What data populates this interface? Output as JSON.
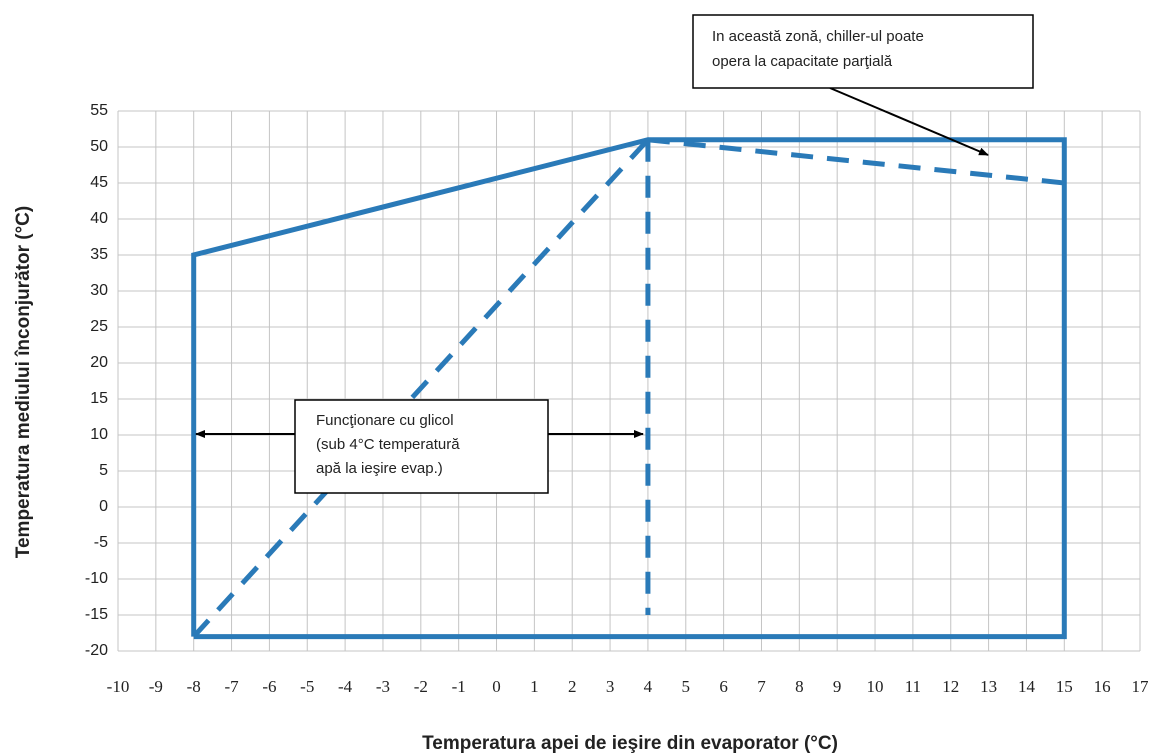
{
  "chart_data": {
    "type": "line",
    "xlabel": "Temperatura apei de ieşire din evaporator (°C)",
    "ylabel": "Temperatura mediului înconjurător (°C)",
    "xlim": [
      -10,
      17
    ],
    "ylim": [
      -20,
      55
    ],
    "xticks": [
      -10,
      -9,
      -8,
      -7,
      -6,
      -5,
      -4,
      -3,
      -2,
      -1,
      0,
      1,
      2,
      3,
      4,
      5,
      6,
      7,
      8,
      9,
      10,
      11,
      12,
      13,
      14,
      15,
      16,
      17
    ],
    "yticks": [
      -20,
      -15,
      -10,
      -5,
      0,
      5,
      10,
      15,
      20,
      25,
      30,
      35,
      40,
      45,
      50,
      55
    ],
    "grid": true,
    "series": [
      {
        "color": "#2a7ab8",
        "dashed": false,
        "x": [
          -8,
          -8,
          4,
          15,
          15,
          -8
        ],
        "values": [
          -18,
          35,
          51,
          51,
          -18,
          -18
        ]
      },
      {
        "color": "#2a7ab8",
        "dashed": true,
        "x": [
          -8,
          4
        ],
        "values": [
          -18,
          51
        ]
      },
      {
        "color": "#2a7ab8",
        "dashed": true,
        "x": [
          4,
          4
        ],
        "values": [
          51,
          -15
        ]
      },
      {
        "color": "#2a7ab8",
        "dashed": true,
        "x": [
          4,
          15
        ],
        "values": [
          51,
          45
        ]
      }
    ],
    "annotations": [
      {
        "lines": [
          "In această zonă, chiller-ul poate",
          "opera la capacitate parţială"
        ]
      },
      {
        "lines": [
          "Funcţionare cu glicol",
          "(sub 4°C temperatură",
          "apă la ieşire evap.)"
        ]
      }
    ]
  }
}
